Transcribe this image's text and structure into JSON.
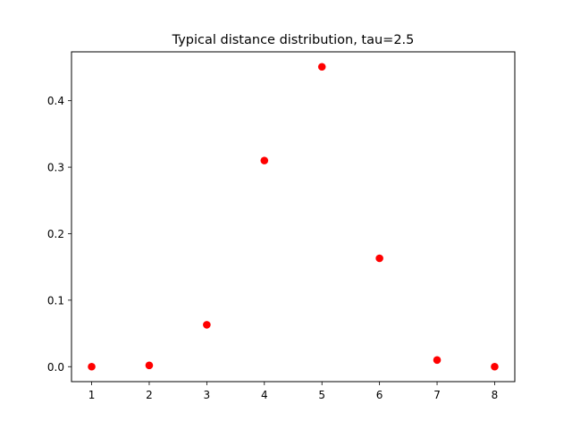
{
  "chart_data": {
    "type": "scatter",
    "title": "Typical distance distribution, tau=2.5",
    "xlabel": "",
    "ylabel": "",
    "series": [
      {
        "x": [
          1,
          2,
          3,
          4,
          5,
          6,
          7,
          8
        ],
        "y": [
          0.0,
          0.002,
          0.063,
          0.31,
          0.451,
          0.163,
          0.01,
          0.0
        ]
      }
    ],
    "xlim": [
      0.65,
      8.35
    ],
    "ylim": [
      -0.0225,
      0.4735
    ],
    "xticks": [
      1,
      2,
      3,
      4,
      5,
      6,
      7,
      8
    ],
    "yticks": [
      0.0,
      0.1,
      0.2,
      0.3,
      0.4
    ],
    "xtick_labels": [
      "1",
      "2",
      "3",
      "4",
      "5",
      "6",
      "7",
      "8"
    ],
    "ytick_labels": [
      "0.0",
      "0.1",
      "0.2",
      "0.3",
      "0.4"
    ],
    "grid": false,
    "marker_color": "#ff0000"
  }
}
